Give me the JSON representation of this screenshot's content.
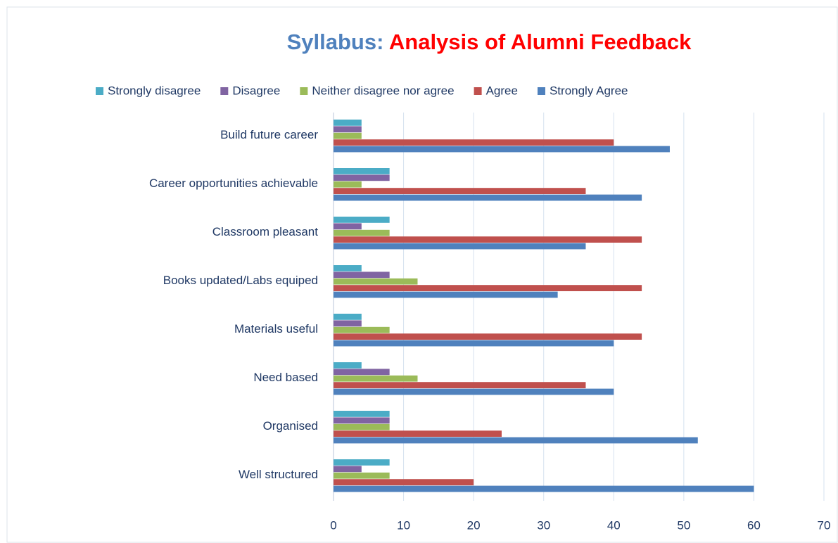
{
  "chart_data": {
    "type": "barh",
    "title": [
      "Syllabus:",
      "Analysis of Alumni Feedback"
    ],
    "title_colors": [
      "#4f81bd",
      "#ff0000"
    ],
    "categories": [
      "Build future career",
      "Career opportunities achievable",
      "Classroom pleasant",
      "Books  updated/Labs equiped",
      "Materials useful",
      "Need based",
      "Organised",
      "Well structured"
    ],
    "series": [
      {
        "name": "Strongly disagree",
        "color": "#4bacc6",
        "values": [
          4,
          8,
          8,
          4,
          4,
          4,
          8,
          8
        ]
      },
      {
        "name": "Disagree",
        "color": "#8064a2",
        "values": [
          4,
          8,
          4,
          8,
          4,
          8,
          8,
          4
        ]
      },
      {
        "name": "Neither disagree nor agree",
        "color": "#9bbb59",
        "values": [
          4,
          4,
          8,
          12,
          8,
          12,
          8,
          8
        ]
      },
      {
        "name": "Agree",
        "color": "#c0504d",
        "values": [
          40,
          36,
          44,
          44,
          44,
          36,
          24,
          20
        ]
      },
      {
        "name": "Strongly Agree",
        "color": "#4f81bd",
        "values": [
          48,
          44,
          36,
          32,
          40,
          40,
          52,
          60
        ]
      }
    ],
    "xlim": [
      0,
      70
    ],
    "xticks": [
      0,
      10,
      20,
      30,
      40,
      50,
      60,
      70
    ],
    "grid": true,
    "legend": "top"
  }
}
